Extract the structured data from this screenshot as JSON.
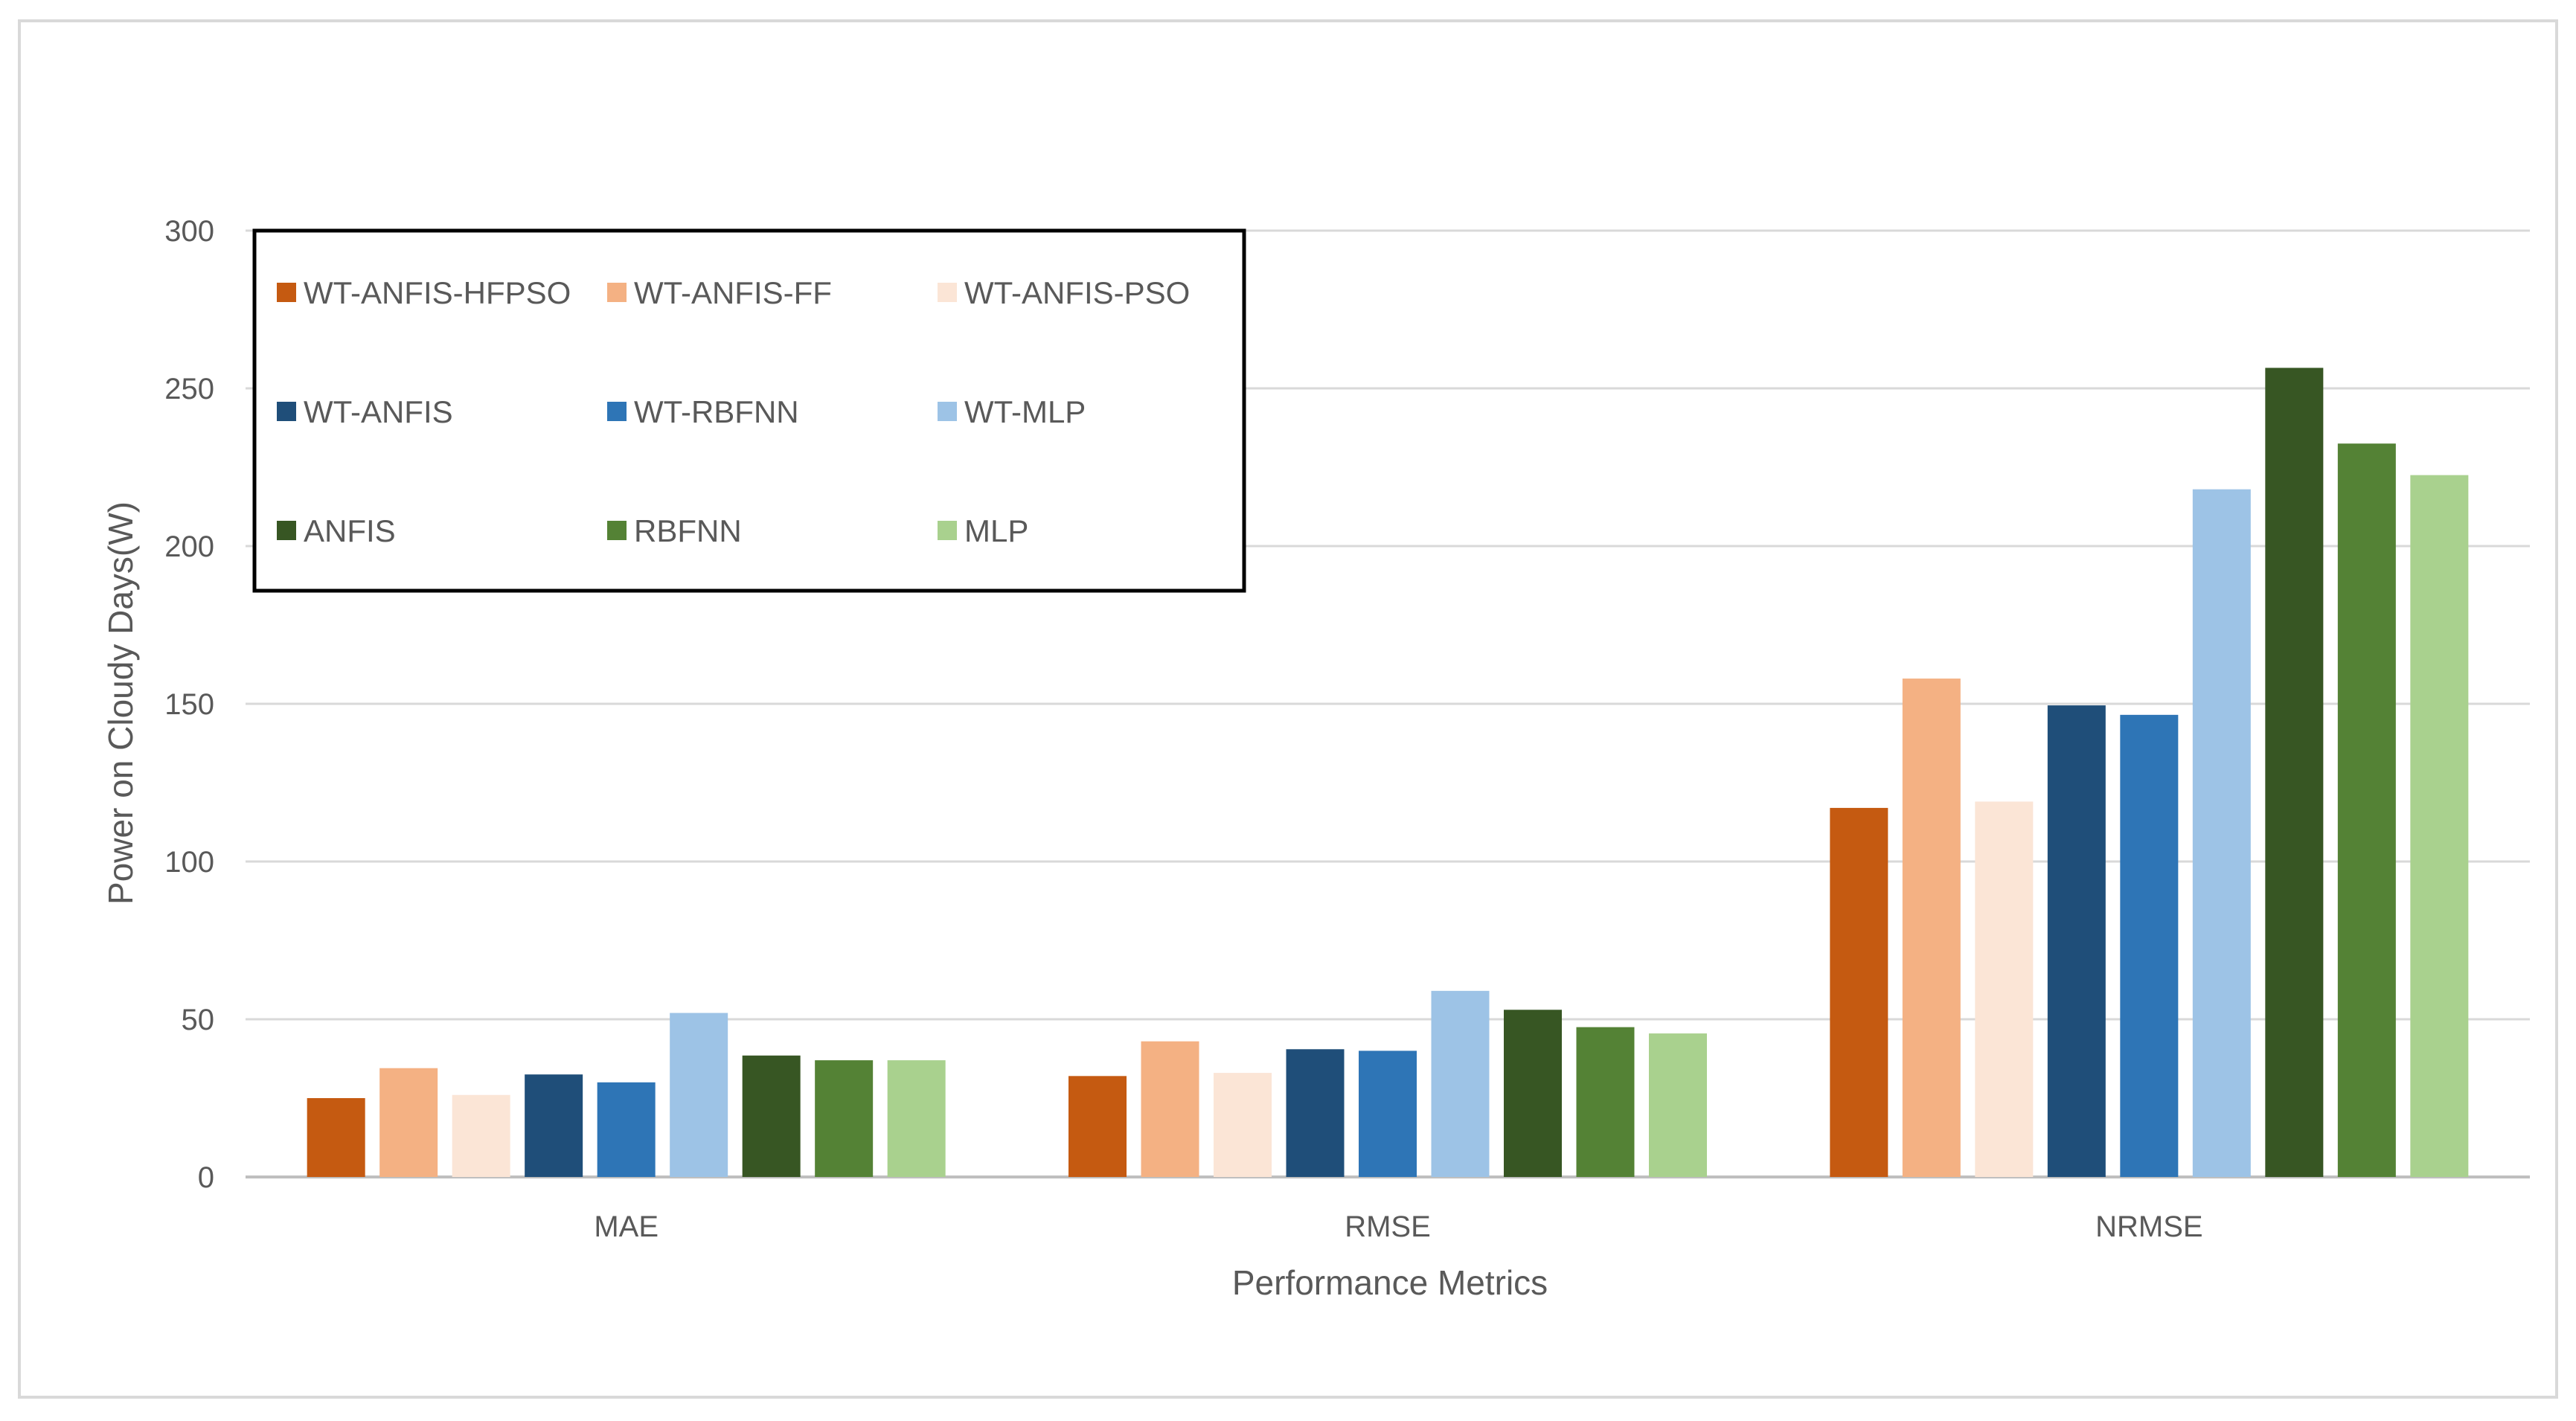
{
  "chart_data": {
    "type": "bar",
    "title": "",
    "xlabel": "Performance Metrics",
    "ylabel": "Power on Cloudy  Days(W)",
    "categories": [
      "MAE",
      "RMSE",
      "NRMSE"
    ],
    "ylim": [
      0,
      300
    ],
    "yticks": [
      0,
      50,
      100,
      150,
      200,
      250,
      300
    ],
    "grid": true,
    "legend_position": "top-left",
    "series": [
      {
        "name": "WT-ANFIS-HFPSO",
        "color": "#C55A11",
        "values": [
          25,
          32,
          117
        ]
      },
      {
        "name": "WT-ANFIS-FF",
        "color": "#F4B183",
        "values": [
          34.5,
          43,
          158
        ]
      },
      {
        "name": "WT-ANFIS-PSO",
        "color": "#FBE5D6",
        "values": [
          26,
          33,
          119
        ]
      },
      {
        "name": "WT-ANFIS",
        "color": "#1F4E79",
        "values": [
          32.5,
          40.5,
          149.5
        ]
      },
      {
        "name": "WT-RBFNN",
        "color": "#2E75B6",
        "values": [
          30,
          40,
          146.5
        ]
      },
      {
        "name": "WT-MLP",
        "color": "#9DC3E6",
        "values": [
          52,
          59,
          218
        ]
      },
      {
        "name": "ANFIS",
        "color": "#375623",
        "values": [
          38.5,
          53,
          256.5
        ]
      },
      {
        "name": "RBFNN",
        "color": "#548235",
        "values": [
          37,
          47.5,
          232.5
        ]
      },
      {
        "name": "MLP",
        "color": "#A9D18E",
        "values": [
          37,
          45.5,
          222.5
        ]
      }
    ]
  }
}
